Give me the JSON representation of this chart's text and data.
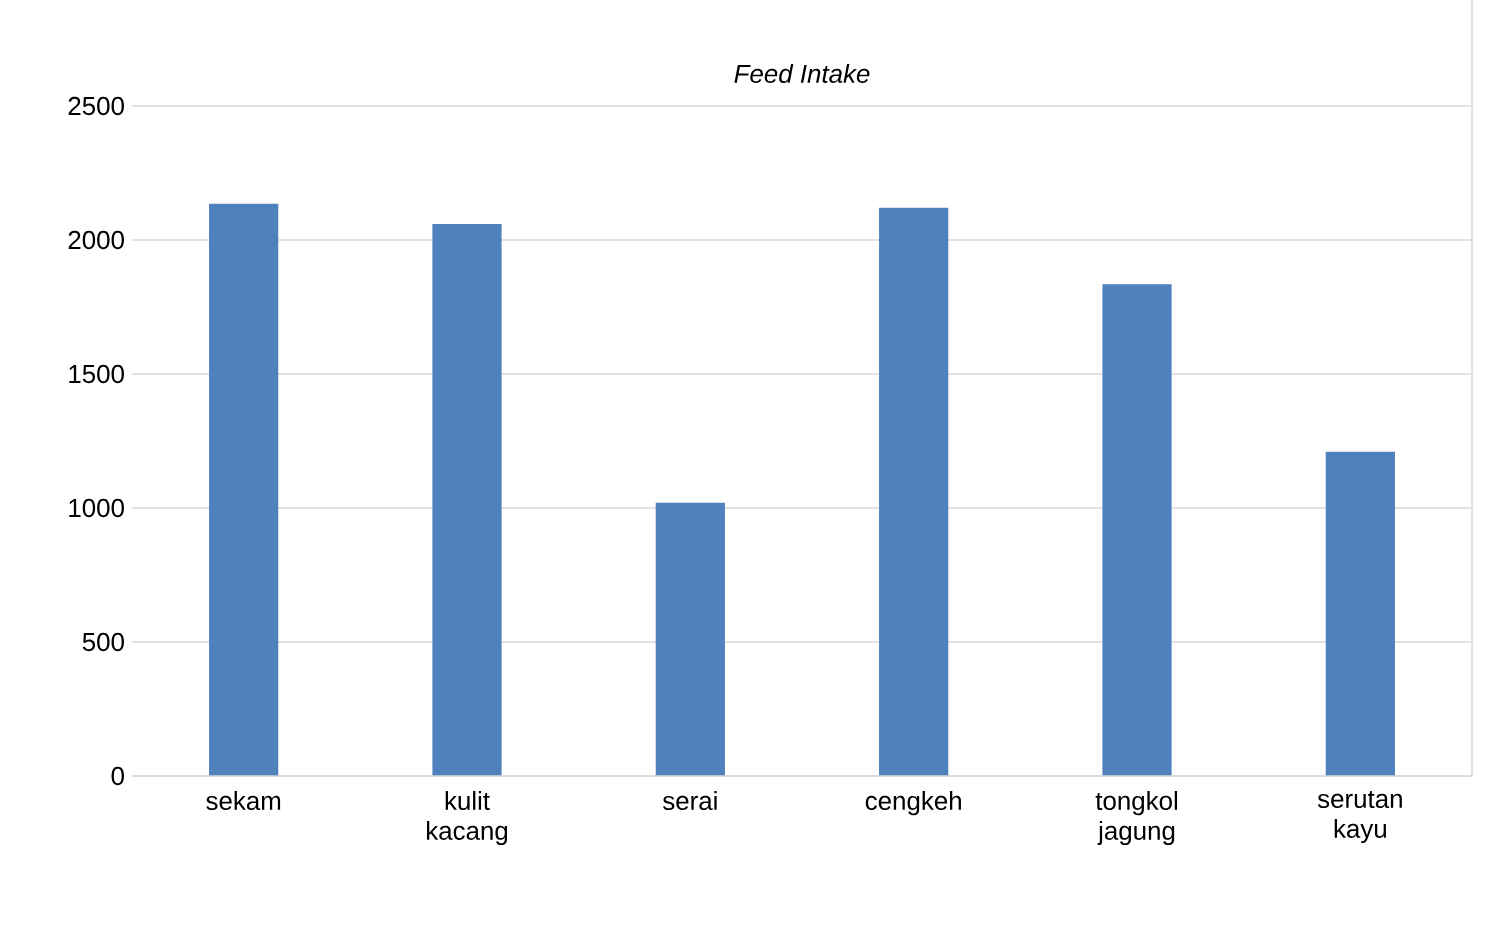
{
  "chart_data": {
    "type": "bar",
    "title": "*Feed Intake*",
    "categories": [
      "sekam",
      "kulit kacang",
      "serai",
      "cengkeh",
      "tongkol jagung",
      "serutan kayu"
    ],
    "values": [
      2135,
      2060,
      1020,
      2120,
      1835,
      1210
    ],
    "color": "#4f81bd",
    "ylim": [
      0,
      2500
    ],
    "yticks": [
      0,
      500,
      1000,
      1500,
      2000,
      2500
    ],
    "grid": "y"
  }
}
